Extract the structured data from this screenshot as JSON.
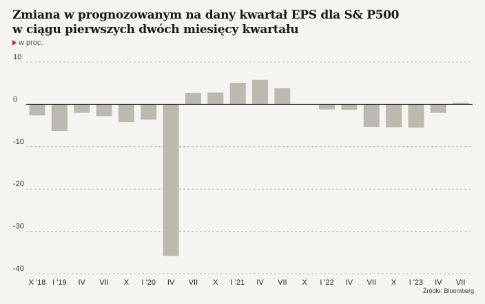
{
  "title_line1": "Zmiana w prognozowanym na dany kwartał EPS dla S& P500",
  "title_line2": "w ciągu pierwszych dwóch miesięcy kwartału",
  "unit": "w proc.",
  "source": "Źródło: Bloomberg",
  "colors": {
    "bar": "#bcb9b0",
    "accent": "#d0202a",
    "grid": "#a9a9a9",
    "background": "#f5f4f0"
  },
  "chart_data": {
    "type": "bar",
    "title": "Zmiana w prognozowanym na dany kwartał EPS dla S& P500 w ciągu pierwszych dwóch miesięcy kwartału",
    "ylabel": "w proc.",
    "xlabel": "",
    "ylim": [
      -40,
      10
    ],
    "yticks": [
      10,
      0,
      -10,
      -20,
      -30,
      -40
    ],
    "grid": true,
    "categories": [
      "X '18",
      "I '19",
      "IV",
      "VII",
      "X",
      "I '20",
      "IV",
      "VII",
      "X",
      "I '21",
      "IV",
      "VII",
      "X",
      "I '22",
      "IV",
      "VII",
      "X",
      "I '23",
      "IV",
      "VII"
    ],
    "values": [
      -2.6,
      -6.3,
      -2.0,
      -2.8,
      -4.2,
      -3.6,
      -35.8,
      2.7,
      2.8,
      5.1,
      5.8,
      3.8,
      0.0,
      -1.2,
      -1.3,
      -5.3,
      -5.4,
      -5.5,
      -2.0,
      0.4
    ]
  }
}
